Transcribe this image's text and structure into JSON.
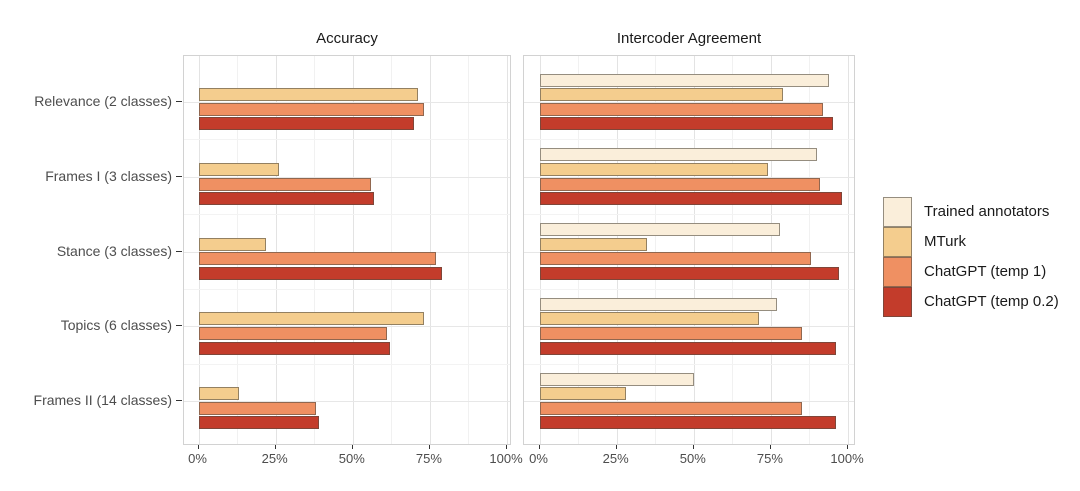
{
  "chart_data": {
    "type": "bar",
    "orientation": "horizontal",
    "title": "",
    "xlabel": "",
    "ylabel": "",
    "xlim": [
      0,
      100
    ],
    "x_tick_labels": [
      "0%",
      "25%",
      "50%",
      "75%",
      "100%"
    ],
    "x_tick_values": [
      0,
      25,
      50,
      75,
      100
    ],
    "x_minor_gridlines": [
      12.5,
      37.5,
      62.5,
      87.5
    ],
    "grid": "on",
    "legend_position": "right",
    "categories": [
      "Relevance (2 classes)",
      "Frames I (3 classes)",
      "Stance (3 classes)",
      "Topics (6 classes)",
      "Frames II (14 classes)"
    ],
    "legend": [
      {
        "label": "Trained annotators",
        "color": "#FAEEDA"
      },
      {
        "label": "MTurk",
        "color": "#F4CD8E"
      },
      {
        "label": "ChatGPT (temp 1)",
        "color": "#EF9062"
      },
      {
        "label": "ChatGPT (temp 0.2)",
        "color": "#C33C2B"
      }
    ],
    "facets": [
      {
        "title": "Accuracy",
        "series": [
          {
            "name": "Trained annotators",
            "values": [
              null,
              null,
              null,
              null,
              null
            ]
          },
          {
            "name": "MTurk",
            "values": [
              71,
              26,
              22,
              73,
              13
            ]
          },
          {
            "name": "ChatGPT (temp 1)",
            "values": [
              73,
              56,
              77,
              61,
              38
            ]
          },
          {
            "name": "ChatGPT (temp 0.2)",
            "values": [
              70,
              57,
              79,
              62,
              39
            ]
          }
        ]
      },
      {
        "title": "Intercoder Agreement",
        "series": [
          {
            "name": "Trained annotators",
            "values": [
              94,
              90,
              78,
              77,
              50
            ]
          },
          {
            "name": "MTurk",
            "values": [
              79,
              74,
              35,
              71,
              28
            ]
          },
          {
            "name": "ChatGPT (temp 1)",
            "values": [
              92,
              91,
              88,
              85,
              85
            ]
          },
          {
            "name": "ChatGPT (temp 0.2)",
            "values": [
              95,
              98,
              97,
              96,
              96
            ]
          }
        ]
      }
    ],
    "colors": {
      "bar_border": "#8A8478",
      "panel_border": "#D2D2D2",
      "grid_major": "#E3E3E3",
      "grid_minor": "#F1F1F1",
      "axis_text": "#4D4D4D",
      "title_text": "#1A1A1A"
    }
  }
}
